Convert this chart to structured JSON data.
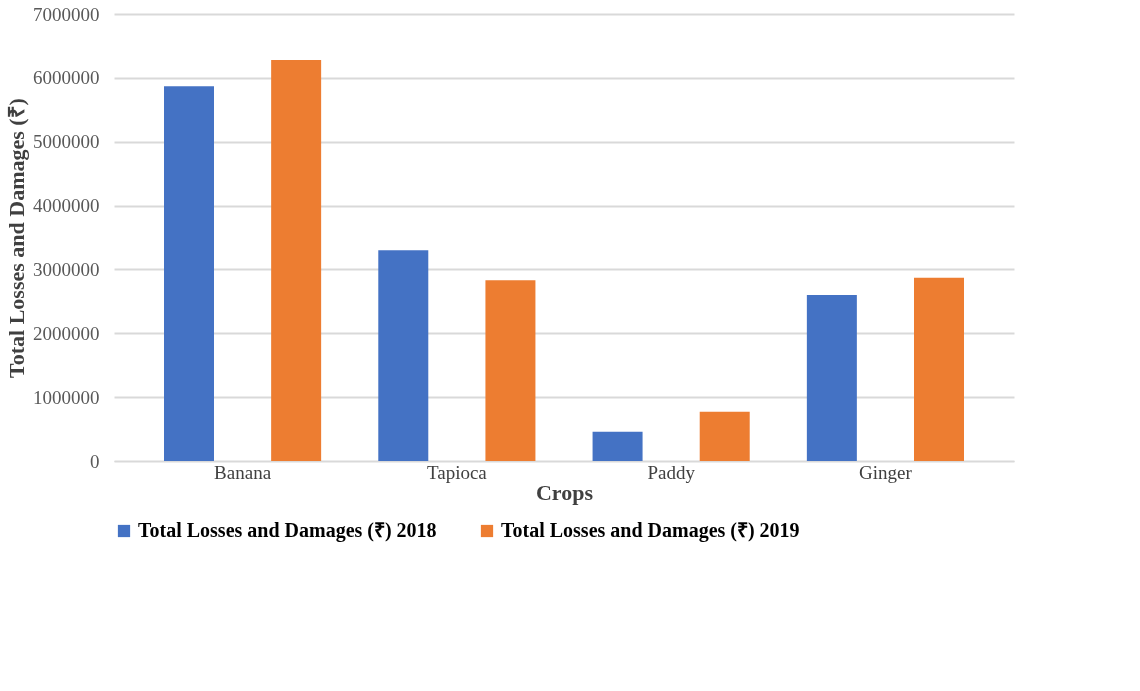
{
  "chart_data": {
    "type": "bar",
    "xlabel": "Crops",
    "ylabel": "Total Losses and Damages (₹)",
    "categories": [
      "Banana",
      "Tapioca",
      "Paddy",
      "Ginger"
    ],
    "series": [
      {
        "name": "Total Losses and Damages (₹) 2018",
        "color": "#4472c4",
        "values": [
          5870000,
          3300000,
          460000,
          2600000
        ]
      },
      {
        "name": "Total Losses and Damages (₹) 2019",
        "color": "#ed7d31",
        "values": [
          6280000,
          2830000,
          770000,
          2870000
        ]
      }
    ],
    "ylim": [
      0,
      7000000
    ],
    "yticks": [
      0,
      1000000,
      2000000,
      3000000,
      4000000,
      5000000,
      6000000,
      7000000
    ],
    "grid": "y",
    "legend": "bottom"
  }
}
